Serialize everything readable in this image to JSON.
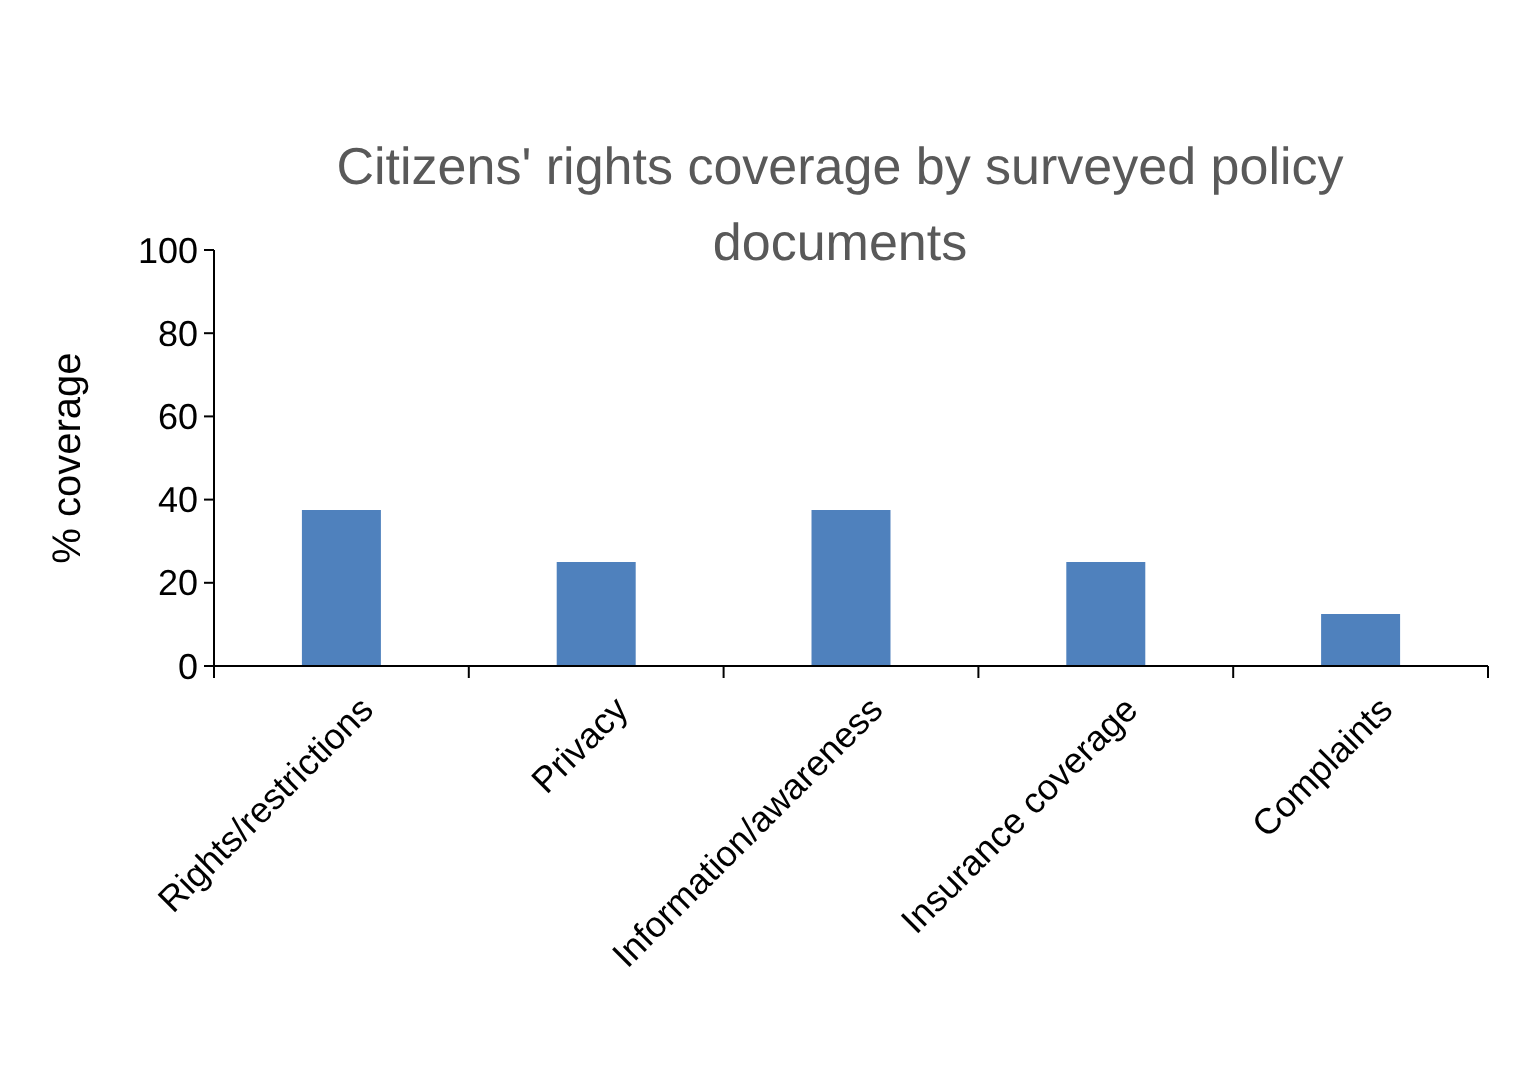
{
  "chart_data": {
    "type": "bar",
    "title": "Citizens' rights coverage by surveyed policy documents",
    "ylabel": "% coverage",
    "categories": [
      "Rights/restrictions",
      "Privacy",
      "Information/awareness",
      "Insurance coverage",
      "Complaints"
    ],
    "values": [
      37.5,
      25,
      37.5,
      25,
      12.5
    ],
    "color": "#4f81bd",
    "ylim": [
      0,
      100
    ],
    "yticks": [
      0,
      20,
      40,
      60,
      80,
      100
    ],
    "grid": false
  }
}
